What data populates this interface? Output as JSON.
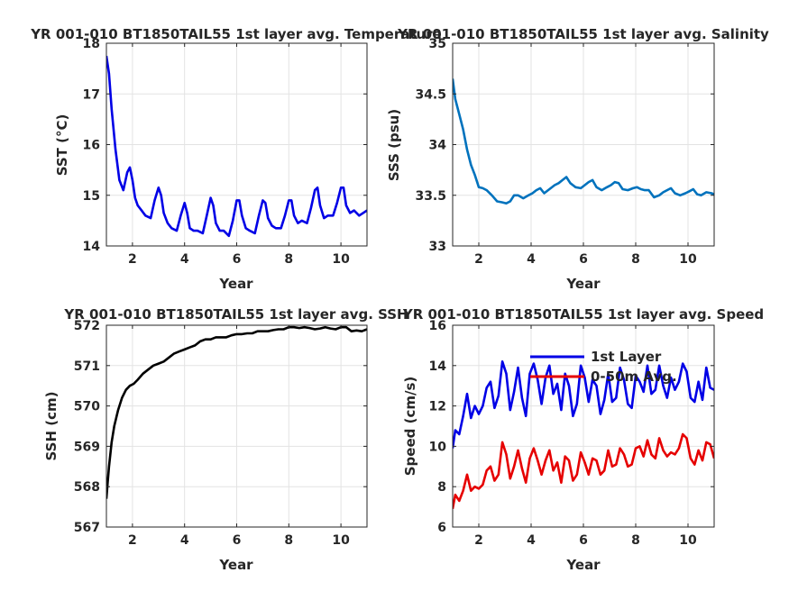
{
  "chart_data": [
    {
      "type": "line",
      "title": "YR 001-010 BT1850TAIL55 1st layer avg. Temperature",
      "xlabel": "Year",
      "ylabel": "SST (°C)",
      "xlim": [
        1,
        11
      ],
      "ylim": [
        14,
        18
      ],
      "xticks": [
        2,
        4,
        6,
        8,
        10
      ],
      "yticks": [
        14,
        15,
        16,
        17,
        18
      ],
      "grid": true,
      "series": [
        {
          "color": "#0000e6",
          "x": [
            1.0,
            1.1,
            1.2,
            1.35,
            1.5,
            1.65,
            1.8,
            1.9,
            2.0,
            2.1,
            2.2,
            2.35,
            2.5,
            2.7,
            2.85,
            3.0,
            3.1,
            3.2,
            3.35,
            3.5,
            3.7,
            3.85,
            4.0,
            4.1,
            4.2,
            4.35,
            4.5,
            4.7,
            4.85,
            5.0,
            5.1,
            5.2,
            5.35,
            5.5,
            5.7,
            5.85,
            6.0,
            6.1,
            6.2,
            6.35,
            6.5,
            6.7,
            6.85,
            7.0,
            7.1,
            7.2,
            7.35,
            7.5,
            7.7,
            7.85,
            8.0,
            8.1,
            8.2,
            8.35,
            8.5,
            8.7,
            8.85,
            9.0,
            9.1,
            9.2,
            9.35,
            9.5,
            9.7,
            9.85,
            10.0,
            10.1,
            10.2,
            10.35,
            10.5,
            10.7,
            10.85,
            11.0
          ],
          "y": [
            17.75,
            17.4,
            16.7,
            15.9,
            15.3,
            15.1,
            15.45,
            15.55,
            15.3,
            14.95,
            14.8,
            14.7,
            14.6,
            14.55,
            14.9,
            15.15,
            15.0,
            14.65,
            14.45,
            14.35,
            14.3,
            14.6,
            14.85,
            14.65,
            14.35,
            14.3,
            14.3,
            14.25,
            14.6,
            14.95,
            14.8,
            14.45,
            14.3,
            14.3,
            14.2,
            14.5,
            14.9,
            14.9,
            14.6,
            14.35,
            14.3,
            14.25,
            14.6,
            14.9,
            14.85,
            14.55,
            14.4,
            14.35,
            14.35,
            14.6,
            14.9,
            14.9,
            14.6,
            14.45,
            14.5,
            14.45,
            14.75,
            15.1,
            15.15,
            14.8,
            14.55,
            14.6,
            14.6,
            14.85,
            15.15,
            15.15,
            14.8,
            14.65,
            14.7,
            14.6,
            14.65,
            14.7
          ]
        }
      ]
    },
    {
      "type": "line",
      "title": "YR 001-010 BT1850TAIL55 1st layer avg. Salinity",
      "xlabel": "Year",
      "ylabel": "SSS (psu)",
      "xlim": [
        1,
        11
      ],
      "ylim": [
        33,
        35
      ],
      "xticks": [
        2,
        4,
        6,
        8,
        10
      ],
      "yticks": [
        33,
        33.5,
        34,
        34.5,
        35
      ],
      "grid": true,
      "series": [
        {
          "color": "#0072bd",
          "x": [
            1.0,
            1.1,
            1.25,
            1.4,
            1.55,
            1.7,
            1.85,
            2.0,
            2.15,
            2.3,
            2.5,
            2.7,
            2.9,
            3.05,
            3.2,
            3.35,
            3.5,
            3.7,
            3.9,
            4.05,
            4.2,
            4.35,
            4.5,
            4.7,
            4.9,
            5.05,
            5.2,
            5.35,
            5.5,
            5.7,
            5.9,
            6.05,
            6.2,
            6.35,
            6.5,
            6.7,
            6.9,
            7.05,
            7.2,
            7.35,
            7.5,
            7.7,
            7.9,
            8.05,
            8.2,
            8.35,
            8.5,
            8.7,
            8.9,
            9.05,
            9.2,
            9.35,
            9.5,
            9.7,
            9.9,
            10.05,
            10.2,
            10.35,
            10.5,
            10.7,
            10.9,
            11.0
          ],
          "y": [
            34.65,
            34.45,
            34.3,
            34.15,
            33.95,
            33.8,
            33.7,
            33.58,
            33.57,
            33.55,
            33.5,
            33.44,
            33.43,
            33.42,
            33.44,
            33.5,
            33.5,
            33.47,
            33.5,
            33.52,
            33.55,
            33.57,
            33.52,
            33.56,
            33.6,
            33.62,
            33.65,
            33.68,
            33.62,
            33.58,
            33.57,
            33.6,
            33.63,
            33.65,
            33.58,
            33.55,
            33.58,
            33.6,
            33.63,
            33.62,
            33.56,
            33.55,
            33.57,
            33.58,
            33.56,
            33.55,
            33.55,
            33.48,
            33.5,
            33.53,
            33.55,
            33.57,
            33.52,
            33.5,
            33.52,
            33.54,
            33.56,
            33.51,
            33.5,
            33.53,
            33.52,
            33.51
          ]
        }
      ]
    },
    {
      "type": "line",
      "title": "YR 001-010 BT1850TAIL55 1st layer avg. SSH",
      "xlabel": "Year",
      "ylabel": "SSH (cm)",
      "xlim": [
        1,
        11
      ],
      "ylim": [
        567,
        572
      ],
      "xticks": [
        2,
        4,
        6,
        8,
        10
      ],
      "yticks": [
        567,
        568,
        569,
        570,
        571,
        572
      ],
      "grid": true,
      "series": [
        {
          "color": "#000000",
          "x": [
            1.0,
            1.05,
            1.1,
            1.2,
            1.3,
            1.45,
            1.6,
            1.75,
            1.9,
            2.05,
            2.2,
            2.4,
            2.6,
            2.8,
            3.0,
            3.2,
            3.4,
            3.6,
            3.8,
            4.0,
            4.2,
            4.4,
            4.6,
            4.8,
            5.0,
            5.2,
            5.4,
            5.6,
            5.8,
            6.0,
            6.2,
            6.4,
            6.6,
            6.8,
            7.0,
            7.2,
            7.4,
            7.6,
            7.8,
            8.0,
            8.2,
            8.4,
            8.6,
            8.8,
            9.0,
            9.2,
            9.4,
            9.6,
            9.8,
            10.0,
            10.2,
            10.4,
            10.6,
            10.8,
            11.0
          ],
          "y": [
            567.7,
            568.1,
            568.5,
            569.1,
            569.5,
            569.9,
            570.2,
            570.4,
            570.5,
            570.55,
            570.65,
            570.8,
            570.9,
            571.0,
            571.05,
            571.1,
            571.2,
            571.3,
            571.35,
            571.4,
            571.45,
            571.5,
            571.6,
            571.65,
            571.65,
            571.7,
            571.7,
            571.7,
            571.75,
            571.78,
            571.78,
            571.8,
            571.8,
            571.85,
            571.85,
            571.85,
            571.88,
            571.9,
            571.9,
            571.95,
            571.95,
            571.93,
            571.95,
            571.93,
            571.9,
            571.92,
            571.95,
            571.92,
            571.9,
            571.95,
            571.95,
            571.85,
            571.87,
            571.85,
            571.9
          ]
        }
      ]
    },
    {
      "type": "line",
      "title": "YR 001-010 BT1850TAIL55 1st layer avg. Speed",
      "xlabel": "Year",
      "ylabel": "Speed (cm/s)",
      "xlim": [
        1,
        11
      ],
      "ylim": [
        6,
        16
      ],
      "xticks": [
        2,
        4,
        6,
        8,
        10
      ],
      "yticks": [
        6,
        8,
        10,
        12,
        14,
        16
      ],
      "grid": true,
      "legend": {
        "location": "top-center",
        "entries": [
          "1st Layer",
          "0-50m Avg."
        ]
      },
      "series": [
        {
          "name": "1st Layer",
          "color": "#0000e6",
          "x": [
            1.0,
            1.1,
            1.25,
            1.4,
            1.55,
            1.7,
            1.85,
            2.0,
            2.15,
            2.3,
            2.45,
            2.6,
            2.75,
            2.9,
            3.05,
            3.2,
            3.35,
            3.5,
            3.65,
            3.8,
            3.95,
            4.1,
            4.25,
            4.4,
            4.55,
            4.7,
            4.85,
            5.0,
            5.15,
            5.3,
            5.45,
            5.6,
            5.75,
            5.9,
            6.05,
            6.2,
            6.35,
            6.5,
            6.65,
            6.8,
            6.95,
            7.1,
            7.25,
            7.4,
            7.55,
            7.7,
            7.85,
            8.0,
            8.15,
            8.3,
            8.45,
            8.6,
            8.75,
            8.9,
            9.05,
            9.2,
            9.35,
            9.5,
            9.65,
            9.8,
            9.95,
            10.1,
            10.25,
            10.4,
            10.55,
            10.7,
            10.85,
            11.0
          ],
          "y": [
            9.9,
            10.8,
            10.6,
            11.5,
            12.6,
            11.4,
            12.0,
            11.6,
            12.0,
            12.9,
            13.2,
            11.9,
            12.5,
            14.2,
            13.6,
            11.8,
            12.7,
            13.9,
            12.4,
            11.5,
            13.6,
            14.1,
            13.3,
            12.1,
            13.4,
            14.0,
            12.6,
            13.1,
            11.8,
            13.6,
            13.0,
            11.5,
            12.1,
            14.0,
            13.4,
            12.2,
            13.3,
            13.0,
            11.6,
            12.3,
            13.6,
            12.2,
            12.4,
            13.9,
            13.3,
            12.1,
            11.9,
            13.5,
            13.2,
            12.7,
            14.0,
            12.6,
            12.8,
            14.0,
            13.0,
            12.4,
            13.4,
            12.8,
            13.2,
            14.1,
            13.7,
            12.4,
            12.2,
            13.2,
            12.3,
            13.9,
            12.9,
            12.8
          ]
        },
        {
          "name": "0-50m Avg.",
          "color": "#e60000",
          "x": [
            1.0,
            1.1,
            1.25,
            1.4,
            1.55,
            1.7,
            1.85,
            2.0,
            2.15,
            2.3,
            2.45,
            2.6,
            2.75,
            2.9,
            3.05,
            3.2,
            3.35,
            3.5,
            3.65,
            3.8,
            3.95,
            4.1,
            4.25,
            4.4,
            4.55,
            4.7,
            4.85,
            5.0,
            5.15,
            5.3,
            5.45,
            5.6,
            5.75,
            5.9,
            6.05,
            6.2,
            6.35,
            6.5,
            6.65,
            6.8,
            6.95,
            7.1,
            7.25,
            7.4,
            7.55,
            7.7,
            7.85,
            8.0,
            8.15,
            8.3,
            8.45,
            8.6,
            8.75,
            8.9,
            9.05,
            9.2,
            9.35,
            9.5,
            9.65,
            9.8,
            9.95,
            10.1,
            10.25,
            10.4,
            10.55,
            10.7,
            10.85,
            11.0
          ],
          "y": [
            6.9,
            7.6,
            7.3,
            7.8,
            8.6,
            7.8,
            8.0,
            7.9,
            8.1,
            8.8,
            9.0,
            8.3,
            8.6,
            10.2,
            9.6,
            8.4,
            9.0,
            9.8,
            8.9,
            8.2,
            9.4,
            9.9,
            9.3,
            8.6,
            9.3,
            9.8,
            8.8,
            9.2,
            8.2,
            9.5,
            9.3,
            8.3,
            8.6,
            9.7,
            9.2,
            8.6,
            9.4,
            9.3,
            8.6,
            8.8,
            9.8,
            9.0,
            9.1,
            9.9,
            9.6,
            9.0,
            9.1,
            9.9,
            10.0,
            9.5,
            10.3,
            9.6,
            9.4,
            10.4,
            9.8,
            9.5,
            9.7,
            9.6,
            9.9,
            10.6,
            10.4,
            9.4,
            9.1,
            9.8,
            9.3,
            10.2,
            10.1,
            9.4
          ]
        }
      ]
    }
  ]
}
